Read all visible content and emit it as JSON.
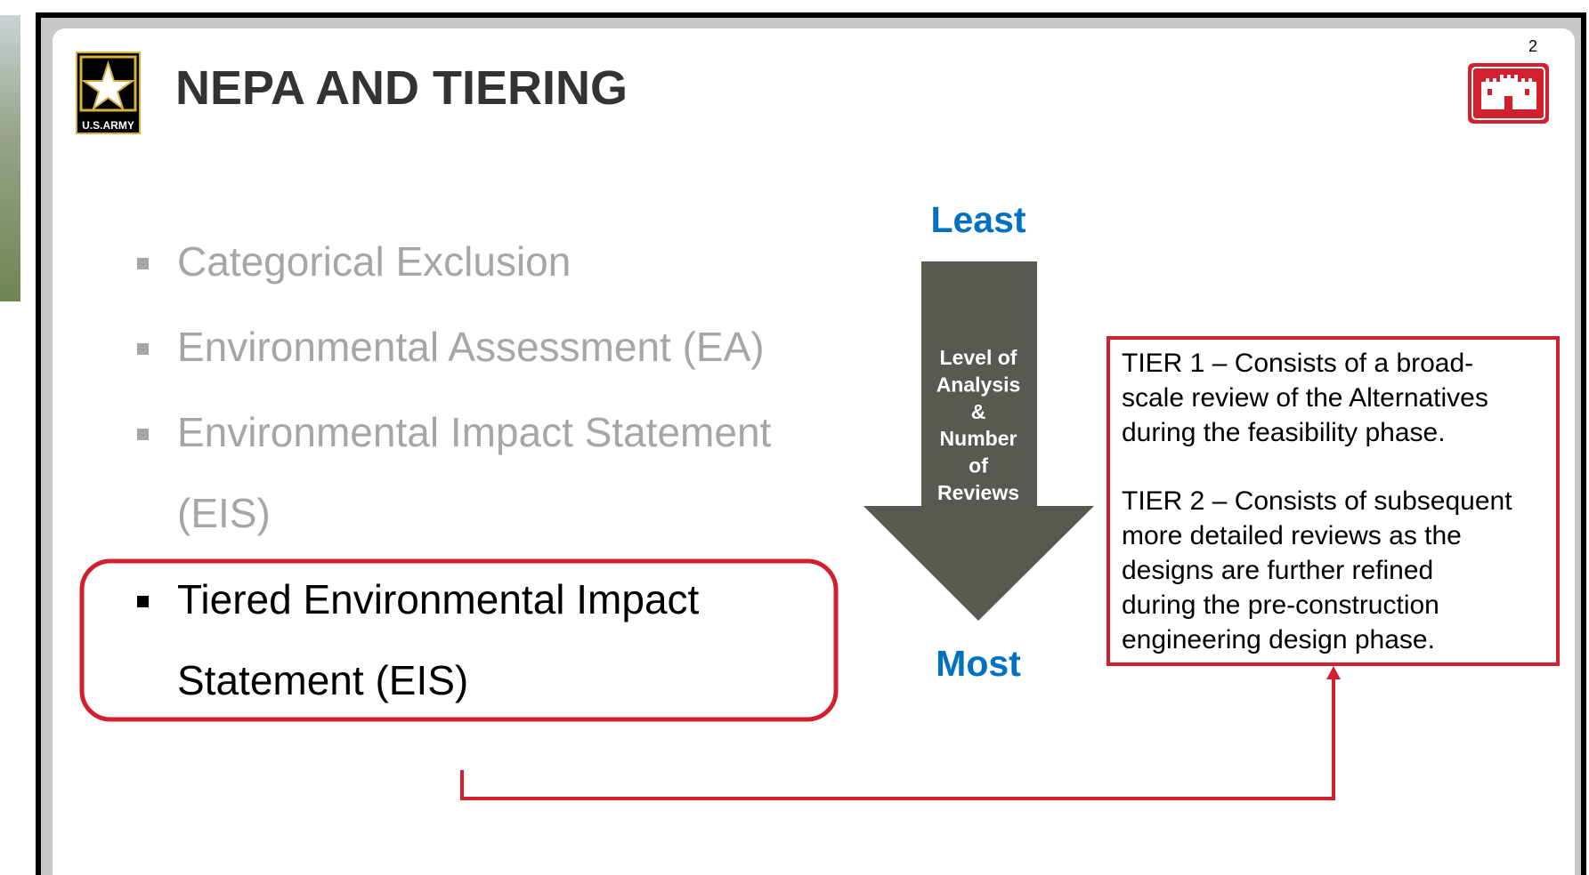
{
  "header": {
    "title": "NEPA AND TIERING",
    "page_number": "2",
    "army_logo_text": "U.S.ARMY"
  },
  "bullets": [
    {
      "lines": [
        "Categorical Exclusion"
      ]
    },
    {
      "lines": [
        "Environmental Assessment (EA)"
      ]
    },
    {
      "lines": [
        "Environmental Impact Statement",
        "(EIS)"
      ]
    },
    {
      "lines": [
        "Tiered Environmental Impact",
        "Statement (EIS)"
      ]
    }
  ],
  "arrow": {
    "top_label": "Least",
    "bottom_label": "Most",
    "inner_lines": [
      "Level of",
      "Analysis",
      "&",
      "Number",
      "of",
      "Reviews"
    ]
  },
  "tiers": [
    {
      "lines": [
        "TIER 1 – Consists of a broad-",
        "scale review of the Alternatives",
        "during the feasibility phase."
      ]
    },
    {
      "lines": [
        "TIER 2 – Consists of subsequent",
        "more detailed reviews as the",
        "designs are further refined",
        "during the pre-construction",
        "engineering design phase."
      ]
    }
  ]
}
